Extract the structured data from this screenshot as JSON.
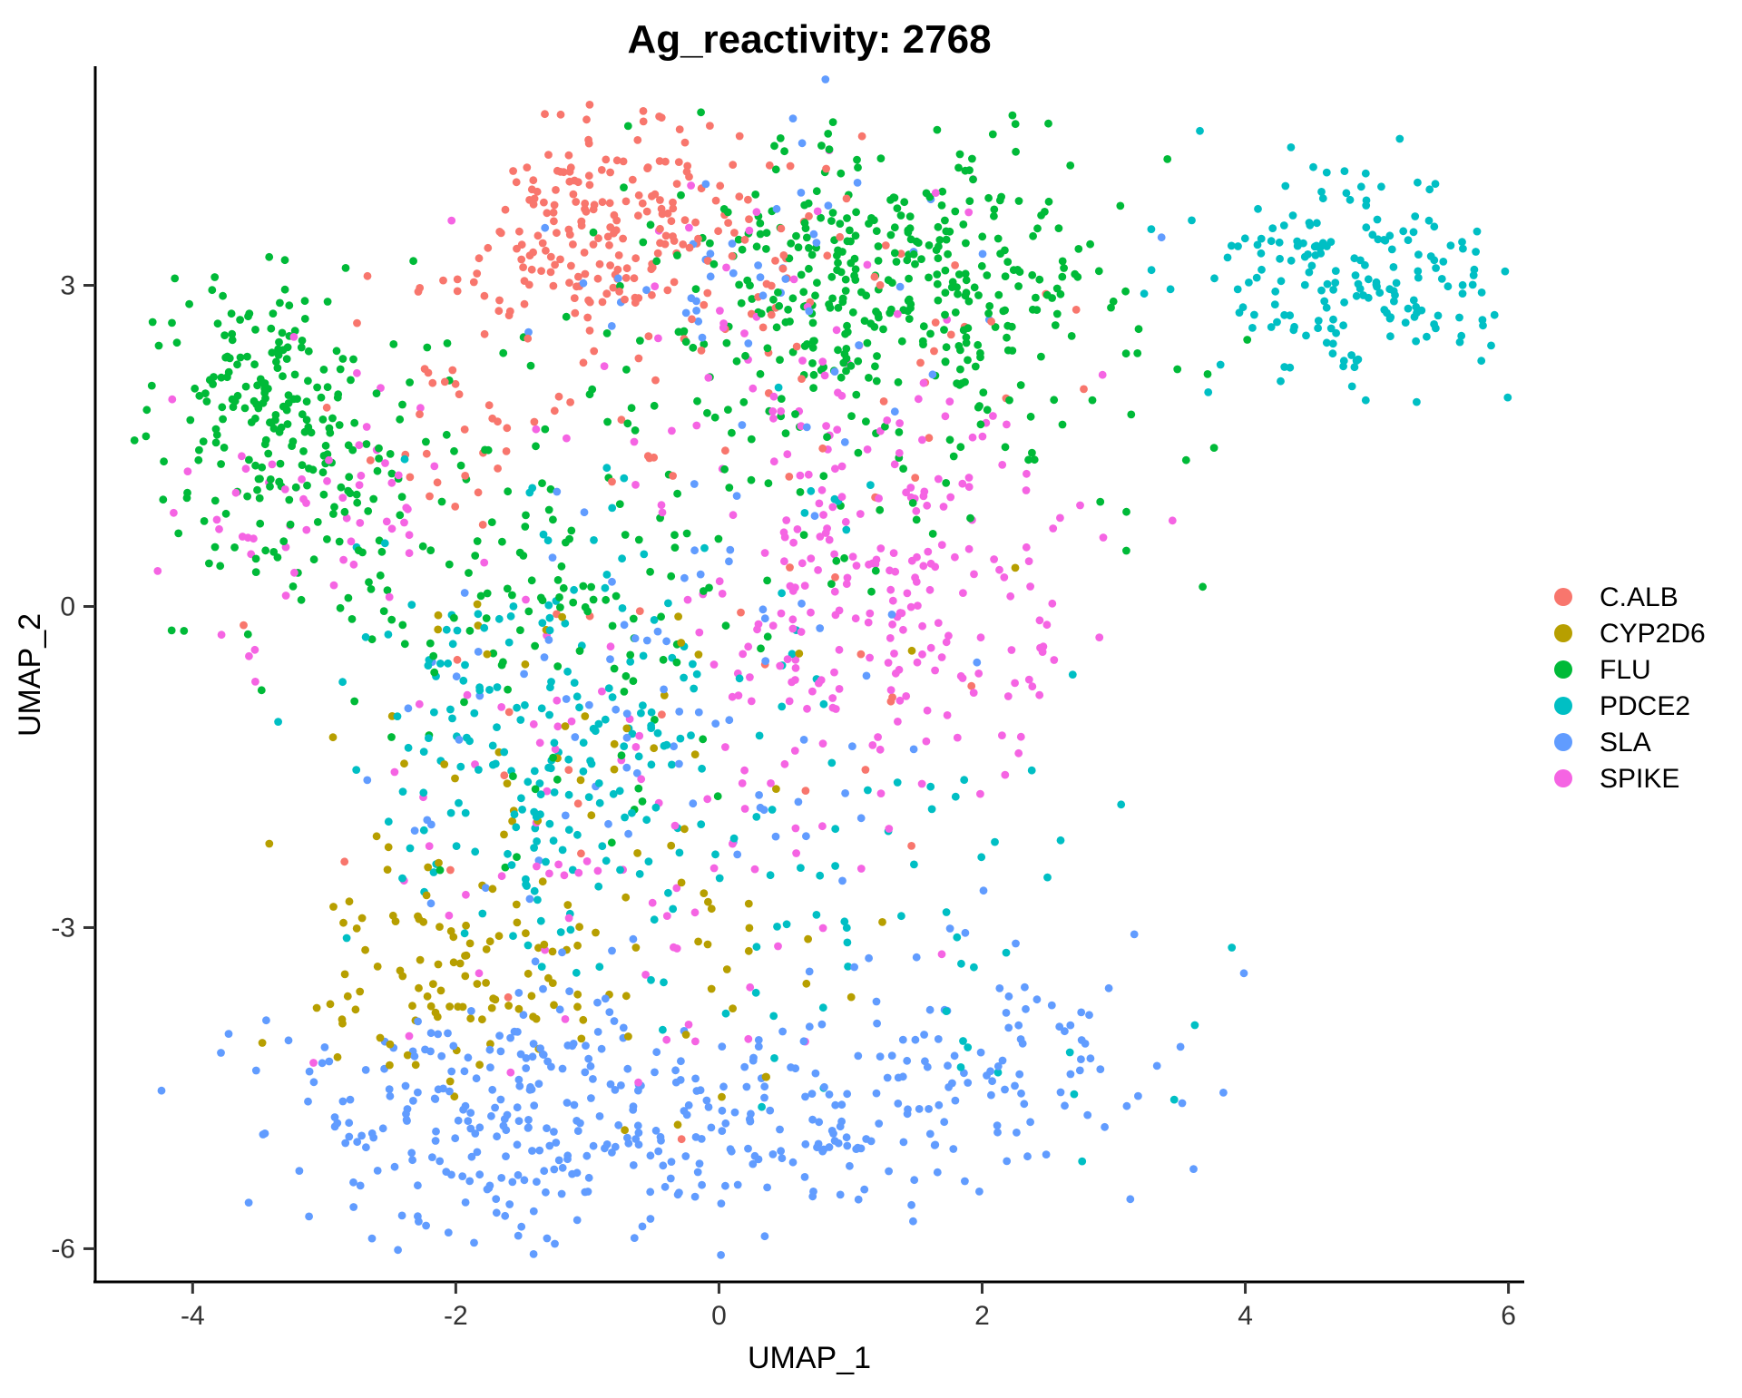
{
  "chart_data": {
    "type": "scatter",
    "title": "Ag_reactivity: 2768",
    "total_points": 2768,
    "xlabel": "UMAP_1",
    "ylabel": "UMAP_2",
    "x_ticks": [
      -4,
      -2,
      0,
      2,
      4,
      6
    ],
    "y_ticks": [
      3,
      0,
      -3,
      -6
    ],
    "x_range": [
      -4.74,
      6.12
    ],
    "y_range": [
      -6.31,
      5.03
    ],
    "grid": "off",
    "legend_position": "right",
    "point_radius_px": 4.4,
    "series": [
      {
        "name": "C.ALB",
        "color": "#F8766D",
        "clusters": [
          {
            "cx": -0.85,
            "cy": 3.6,
            "sx": 0.55,
            "sy": 0.5,
            "n": 200
          },
          {
            "cx": -1.9,
            "cy": 1.9,
            "sx": 0.5,
            "sy": 0.6,
            "n": 40
          },
          {
            "cx": 0.5,
            "cy": 2.7,
            "sx": 1.0,
            "sy": 0.9,
            "n": 55
          },
          {
            "cx": -0.2,
            "cy": -0.6,
            "sx": 1.6,
            "sy": 1.5,
            "n": 35
          }
        ]
      },
      {
        "name": "CYP2D6",
        "color": "#B79F00",
        "clusters": [
          {
            "cx": -2.3,
            "cy": -3.5,
            "sx": 0.55,
            "sy": 0.5,
            "n": 80
          },
          {
            "cx": -0.7,
            "cy": -3.1,
            "sx": 1.0,
            "sy": 0.8,
            "n": 55
          },
          {
            "cx": -1.0,
            "cy": -1.3,
            "sx": 1.2,
            "sy": 1.0,
            "n": 35
          }
        ]
      },
      {
        "name": "FLU",
        "color": "#00BA38",
        "clusters": [
          {
            "cx": 1.3,
            "cy": 3.1,
            "sx": 0.8,
            "sy": 0.7,
            "n": 320
          },
          {
            "cx": 1.7,
            "cy": 1.9,
            "sx": 1.0,
            "sy": 0.9,
            "n": 80
          },
          {
            "cx": -3.4,
            "cy": 2.0,
            "sx": 0.45,
            "sy": 0.55,
            "n": 170
          },
          {
            "cx": -3.2,
            "cy": 0.7,
            "sx": 0.5,
            "sy": 0.6,
            "n": 60
          },
          {
            "cx": -1.3,
            "cy": 0.1,
            "sx": 0.9,
            "sy": 1.1,
            "n": 140
          },
          {
            "cx": -0.4,
            "cy": 2.4,
            "sx": 0.8,
            "sy": 0.9,
            "n": 30
          }
        ]
      },
      {
        "name": "PDCE2",
        "color": "#00BFC4",
        "clusters": [
          {
            "cx": 4.8,
            "cy": 3.1,
            "sx": 0.55,
            "sy": 0.5,
            "n": 190
          },
          {
            "cx": -1.3,
            "cy": -1.3,
            "sx": 0.8,
            "sy": 0.9,
            "n": 200
          },
          {
            "cx": 1.2,
            "cy": -2.8,
            "sx": 1.3,
            "sy": 0.8,
            "n": 60
          },
          {
            "cx": 0.1,
            "cy": 0.6,
            "sx": 1.2,
            "sy": 0.9,
            "n": 20
          }
        ]
      },
      {
        "name": "SLA",
        "color": "#619CFF",
        "clusters": [
          {
            "cx": -1.5,
            "cy": -4.8,
            "sx": 0.9,
            "sy": 0.55,
            "n": 280
          },
          {
            "cx": 0.8,
            "cy": -4.9,
            "sx": 0.7,
            "sy": 0.5,
            "n": 90
          },
          {
            "cx": 2.0,
            "cy": -4.2,
            "sx": 0.8,
            "sy": 0.6,
            "n": 90
          },
          {
            "cx": 0.3,
            "cy": 3.1,
            "sx": 0.9,
            "sy": 0.6,
            "n": 50
          },
          {
            "cx": -0.4,
            "cy": -0.9,
            "sx": 1.2,
            "sy": 1.1,
            "n": 80
          }
        ]
      },
      {
        "name": "SPIKE",
        "color": "#F564E3",
        "clusters": [
          {
            "cx": 1.2,
            "cy": 0.1,
            "sx": 0.8,
            "sy": 0.9,
            "n": 230
          },
          {
            "cx": -3.1,
            "cy": 0.9,
            "sx": 0.5,
            "sy": 0.6,
            "n": 60
          },
          {
            "cx": -0.6,
            "cy": -2.3,
            "sx": 1.2,
            "sy": 1.0,
            "n": 70
          },
          {
            "cx": 0.4,
            "cy": 2.7,
            "sx": 1.0,
            "sy": 0.8,
            "n": 48
          }
        ]
      }
    ]
  }
}
